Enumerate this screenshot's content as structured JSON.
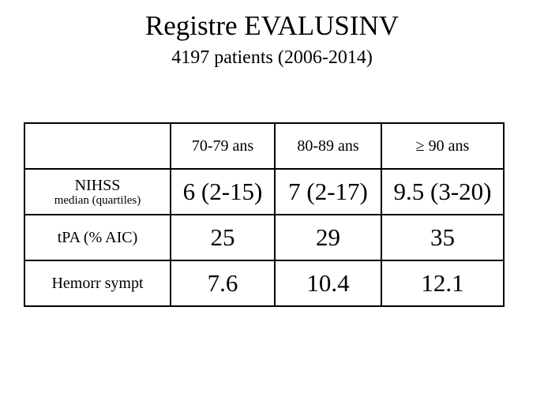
{
  "header": {
    "title": "Registre EVALUSINV",
    "subtitle": "4197 patients (2006-2014)"
  },
  "table": {
    "columns": [
      "70-79 ans",
      "80-89 ans",
      "≥ 90 ans"
    ],
    "rows": [
      {
        "label": "NIHSS",
        "sublabel": "median (quartiles)",
        "cells": [
          "6 (2-15)",
          "7 (2-17)",
          "9.5 (3-20)"
        ]
      },
      {
        "label": "tPA (% AIC)",
        "cells": [
          25,
          29,
          35
        ]
      },
      {
        "label": "Hemorr sympt",
        "cells": [
          7.6,
          10.4,
          12.1
        ]
      }
    ]
  }
}
